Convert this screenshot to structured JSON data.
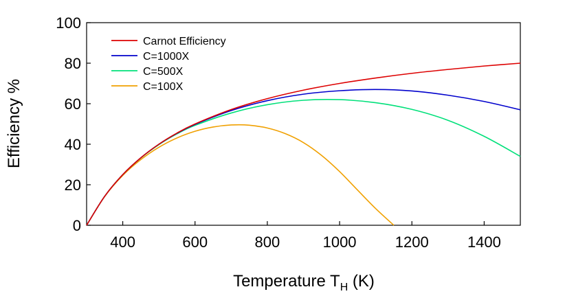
{
  "chart_data": {
    "type": "line",
    "title": "",
    "xlabel": "Temperature T",
    "xlabel_sub": "H",
    "xlabel_unit": " (K)",
    "ylabel": "Efficiency %",
    "xlim": [
      300,
      1500
    ],
    "ylim": [
      0,
      100
    ],
    "xticks": [
      400,
      600,
      800,
      1000,
      1200,
      1400
    ],
    "yticks": [
      0,
      20,
      40,
      60,
      80,
      100
    ],
    "grid": false,
    "legend_position": "top-left",
    "series": [
      {
        "name": "Carnot Efficiency",
        "color": "#dd0000",
        "x": [
          300,
          350,
          400,
          450,
          500,
          550,
          600,
          700,
          800,
          900,
          1000,
          1100,
          1200,
          1300,
          1400,
          1500
        ],
        "y": [
          0,
          14.3,
          25,
          33.3,
          40,
          45.5,
          50,
          57.1,
          62.5,
          66.7,
          70,
          72.7,
          75,
          76.9,
          78.6,
          80
        ]
      },
      {
        "name": "C=1000X",
        "color": "#0000cc",
        "x": [
          300,
          350,
          400,
          450,
          500,
          550,
          600,
          700,
          800,
          900,
          1000,
          1100,
          1200,
          1300,
          1400,
          1500
        ],
        "y": [
          0,
          14.3,
          25,
          33.3,
          40,
          45.4,
          49.8,
          56.6,
          61.5,
          64.7,
          66.4,
          67,
          66.3,
          64.2,
          61.1,
          57
        ]
      },
      {
        "name": "C=500X",
        "color": "#00e07a",
        "x": [
          300,
          350,
          400,
          450,
          500,
          550,
          600,
          700,
          800,
          900,
          1000,
          1100,
          1200,
          1300,
          1400,
          1500
        ],
        "y": [
          0,
          14.3,
          25,
          33.2,
          39.8,
          45.1,
          49.3,
          55.4,
          59.5,
          61.7,
          62,
          60.5,
          57.2,
          51.8,
          43.9,
          34
        ]
      },
      {
        "name": "C=100X",
        "color": "#f0a000",
        "x": [
          300,
          350,
          400,
          450,
          500,
          550,
          600,
          650,
          700,
          750,
          800,
          850,
          900,
          950,
          1000,
          1050,
          1100,
          1150
        ],
        "y": [
          0,
          14.2,
          24.6,
          32.4,
          38.5,
          43.1,
          46.4,
          48.5,
          49.5,
          49.4,
          48,
          45.2,
          40.8,
          34.5,
          26.5,
          17.3,
          8.2,
          0
        ]
      }
    ]
  }
}
